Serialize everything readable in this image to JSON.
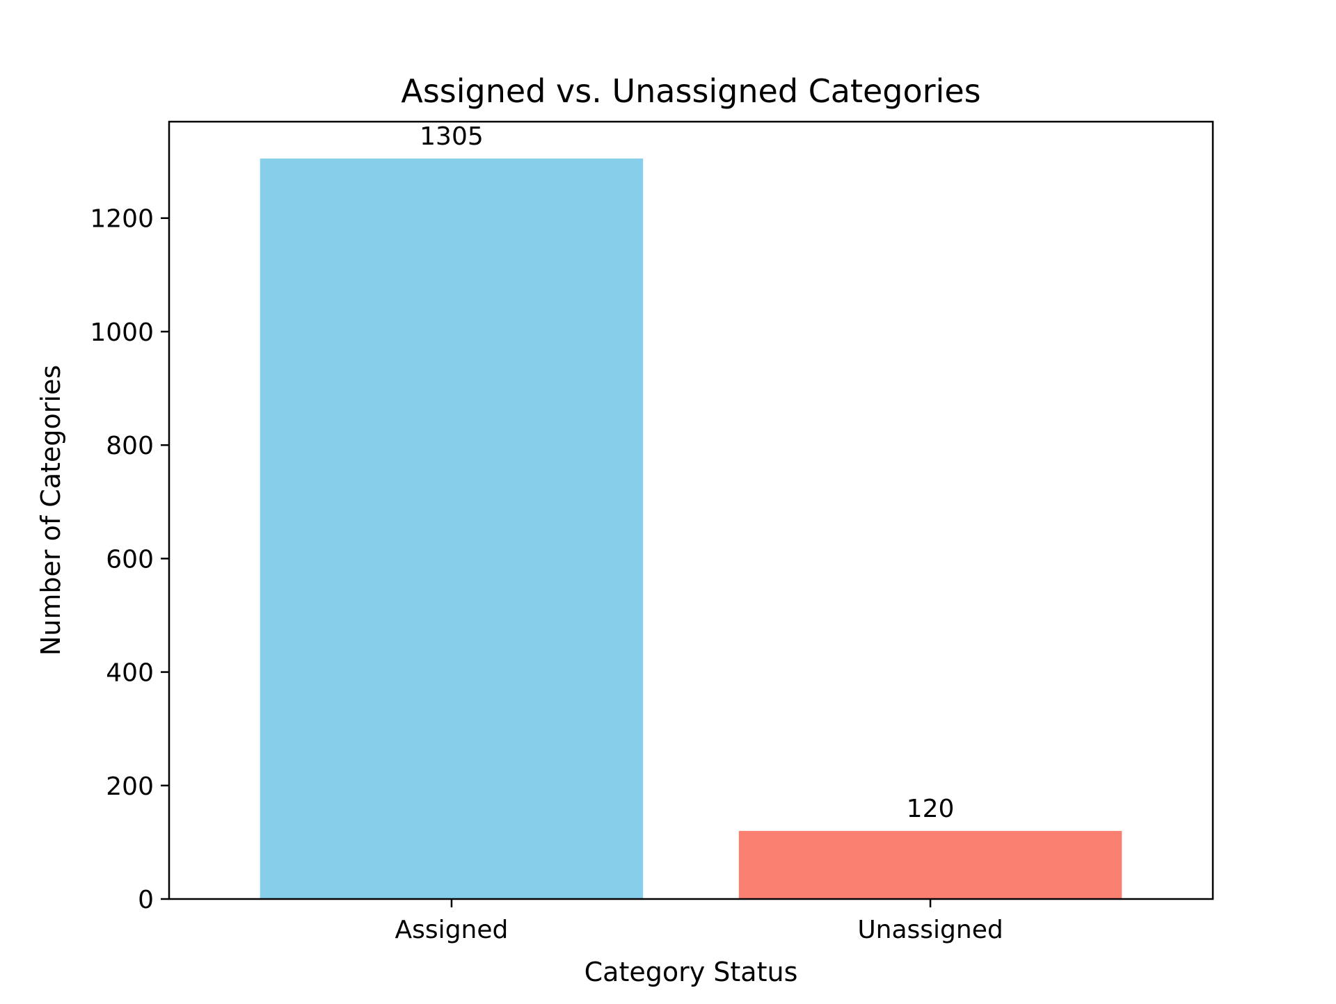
{
  "chart_data": {
    "type": "bar",
    "title": "Assigned vs. Unassigned Categories",
    "xlabel": "Category Status",
    "ylabel": "Number of Categories",
    "categories": [
      "Assigned",
      "Unassigned"
    ],
    "values": [
      1305,
      120
    ],
    "data_labels": [
      "1305",
      "120"
    ],
    "colors": [
      "#87ceeb",
      "#fa8072"
    ],
    "ylim": [
      0,
      1370
    ],
    "yticks": [
      0,
      200,
      400,
      600,
      800,
      1000,
      1200
    ],
    "ytick_labels": [
      "0",
      "200",
      "400",
      "600",
      "800",
      "1000",
      "1200"
    ],
    "grid": false,
    "legend": "none"
  }
}
